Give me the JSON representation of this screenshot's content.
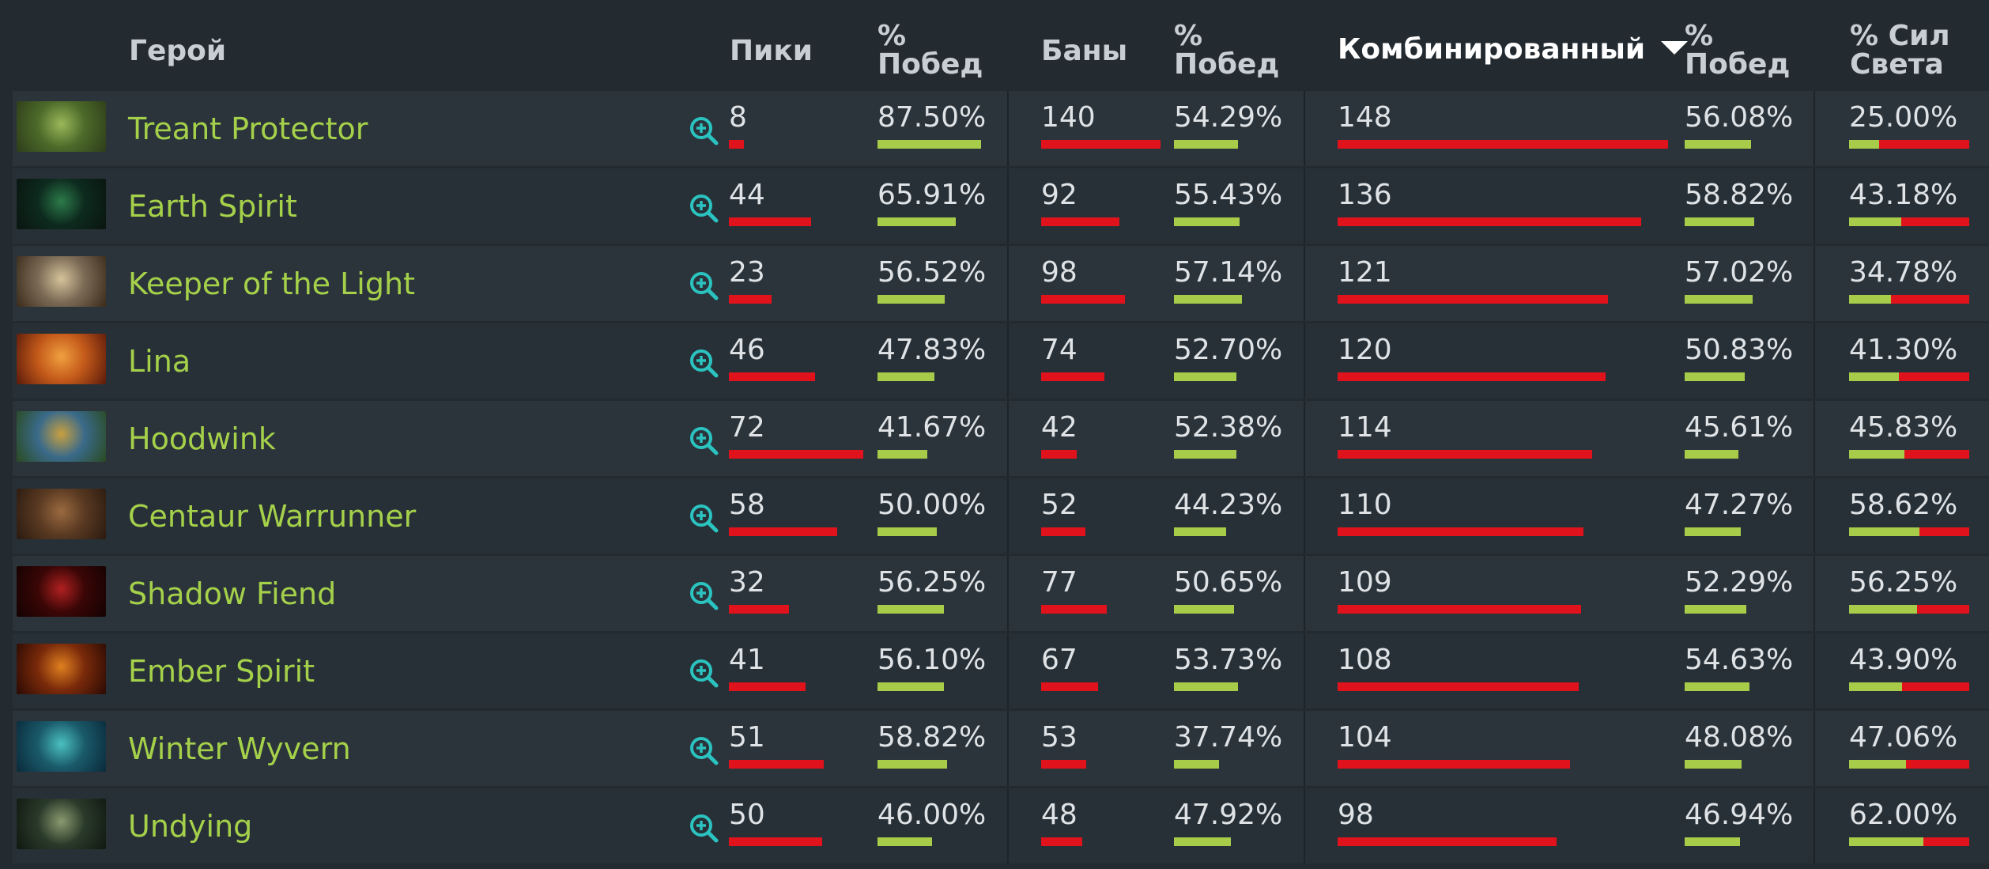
{
  "header": {
    "hero": "Герой",
    "picks": "Пики",
    "picks_winrate": [
      "%",
      "Побед"
    ],
    "bans": "Баны",
    "bans_winrate": [
      "%",
      "Побед"
    ],
    "combined": "Комбинированный",
    "combined_winrate": [
      "%",
      "Побед"
    ],
    "radiant": [
      "% Сил",
      "Света"
    ]
  },
  "colors": {
    "hero_link": "#a5d14a",
    "bar_red": "#e0131c",
    "bar_green": "#a6cc4a",
    "zoom_icon": "#2bc3c0"
  },
  "rows": [
    {
      "hero": "Treant Protector",
      "avatar_icon": "treant-protector-portrait",
      "picks": "8",
      "picks_win": "87.50%",
      "bans": "140",
      "bans_win": "54.29%",
      "combined": "148",
      "combined_win": "56.08%",
      "radiant": "25.00%"
    },
    {
      "hero": "Earth Spirit",
      "avatar_icon": "earth-spirit-portrait",
      "picks": "44",
      "picks_win": "65.91%",
      "bans": "92",
      "bans_win": "55.43%",
      "combined": "136",
      "combined_win": "58.82%",
      "radiant": "43.18%"
    },
    {
      "hero": "Keeper of the Light",
      "avatar_icon": "keeper-of-the-light-portrait",
      "picks": "23",
      "picks_win": "56.52%",
      "bans": "98",
      "bans_win": "57.14%",
      "combined": "121",
      "combined_win": "57.02%",
      "radiant": "34.78%"
    },
    {
      "hero": "Lina",
      "avatar_icon": "lina-portrait",
      "picks": "46",
      "picks_win": "47.83%",
      "bans": "74",
      "bans_win": "52.70%",
      "combined": "120",
      "combined_win": "50.83%",
      "radiant": "41.30%"
    },
    {
      "hero": "Hoodwink",
      "avatar_icon": "hoodwink-portrait",
      "picks": "72",
      "picks_win": "41.67%",
      "bans": "42",
      "bans_win": "52.38%",
      "combined": "114",
      "combined_win": "45.61%",
      "radiant": "45.83%"
    },
    {
      "hero": "Centaur Warrunner",
      "avatar_icon": "centaur-warrunner-portrait",
      "picks": "58",
      "picks_win": "50.00%",
      "bans": "52",
      "bans_win": "44.23%",
      "combined": "110",
      "combined_win": "47.27%",
      "radiant": "58.62%"
    },
    {
      "hero": "Shadow Fiend",
      "avatar_icon": "shadow-fiend-portrait",
      "picks": "32",
      "picks_win": "56.25%",
      "bans": "77",
      "bans_win": "50.65%",
      "combined": "109",
      "combined_win": "52.29%",
      "radiant": "56.25%"
    },
    {
      "hero": "Ember Spirit",
      "avatar_icon": "ember-spirit-portrait",
      "picks": "41",
      "picks_win": "56.10%",
      "bans": "67",
      "bans_win": "53.73%",
      "combined": "108",
      "combined_win": "54.63%",
      "radiant": "43.90%"
    },
    {
      "hero": "Winter Wyvern",
      "avatar_icon": "winter-wyvern-portrait",
      "picks": "51",
      "picks_win": "58.82%",
      "bans": "53",
      "bans_win": "37.74%",
      "combined": "104",
      "combined_win": "48.08%",
      "radiant": "47.06%"
    },
    {
      "hero": "Undying",
      "avatar_icon": "undying-portrait",
      "picks": "50",
      "picks_win": "46.00%",
      "bans": "48",
      "bans_win": "47.92%",
      "combined": "98",
      "combined_win": "46.94%",
      "radiant": "62.00%"
    }
  ]
}
